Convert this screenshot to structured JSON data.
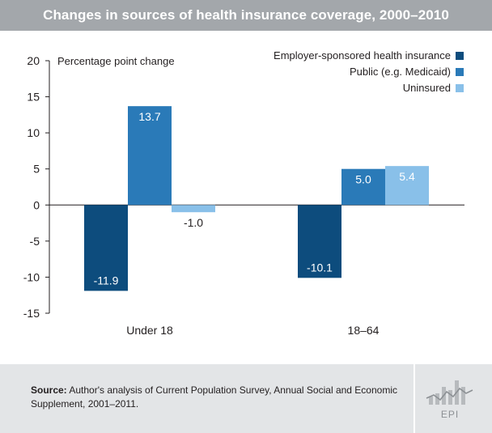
{
  "title": "Changes in sources of health insurance coverage, 2000–2010",
  "chart_data": {
    "type": "bar",
    "ylabel": "Percentage point change",
    "ylim": [
      -15,
      20
    ],
    "yticks": [
      20,
      15,
      10,
      5,
      0,
      -5,
      -10,
      -15
    ],
    "categories": [
      "Under 18",
      "18–64"
    ],
    "legend_position": "top-right",
    "series": [
      {
        "name": "Employer-sponsored health insurance",
        "color": "#0d4c7d",
        "values": [
          -11.9,
          -10.1
        ],
        "labels": [
          "-11.9",
          "-10.1"
        ]
      },
      {
        "name": "Public (e.g. Medicaid)",
        "color": "#2a7ab8",
        "values": [
          13.7,
          5.0
        ],
        "labels": [
          "13.7",
          "5.0"
        ]
      },
      {
        "name": "Uninsured",
        "color": "#89c0e9",
        "values": [
          -1.0,
          5.4
        ],
        "labels": [
          "-1.0",
          "5.4"
        ]
      }
    ]
  },
  "footer": {
    "source_label": "Source:",
    "source_text": "Author's analysis of Current Population Survey, Annual Social and Economic Supplement, 2001–2011.",
    "logo_text": "EPI"
  }
}
